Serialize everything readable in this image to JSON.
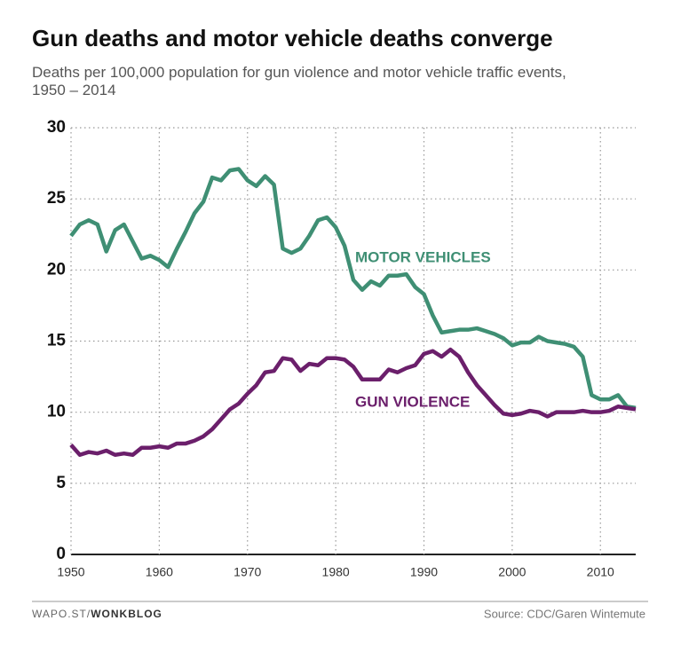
{
  "chart_data": {
    "type": "line",
    "title": "Gun deaths and motor vehicle deaths converge",
    "subtitle": "Deaths per 100,000 population for gun violence and motor vehicle traffic events, 1950 – 2014",
    "x": [
      1950,
      1951,
      1952,
      1953,
      1954,
      1955,
      1956,
      1957,
      1958,
      1959,
      1960,
      1961,
      1962,
      1963,
      1964,
      1965,
      1966,
      1967,
      1968,
      1969,
      1970,
      1971,
      1972,
      1973,
      1974,
      1975,
      1976,
      1977,
      1978,
      1979,
      1980,
      1981,
      1982,
      1983,
      1984,
      1985,
      1986,
      1987,
      1988,
      1989,
      1990,
      1991,
      1992,
      1993,
      1994,
      1995,
      1996,
      1997,
      1998,
      1999,
      2000,
      2001,
      2002,
      2003,
      2004,
      2005,
      2006,
      2007,
      2008,
      2009,
      2010,
      2011,
      2012,
      2013,
      2014
    ],
    "series": [
      {
        "name": "MOTOR VEHICLES",
        "color": "#3f8f74",
        "values": [
          22.4,
          23.2,
          23.5,
          23.2,
          21.3,
          22.8,
          23.2,
          22.0,
          20.8,
          21.0,
          20.7,
          20.2,
          21.5,
          22.7,
          24.0,
          24.8,
          26.5,
          26.3,
          27.0,
          27.1,
          26.3,
          25.9,
          26.6,
          26.0,
          21.5,
          21.2,
          21.5,
          22.4,
          23.5,
          23.7,
          23.0,
          21.7,
          19.3,
          18.6,
          19.2,
          18.9,
          19.6,
          19.6,
          19.7,
          18.8,
          18.3,
          16.8,
          15.6,
          15.7,
          15.8,
          15.8,
          15.9,
          15.7,
          15.5,
          15.2,
          14.7,
          14.9,
          14.9,
          15.3,
          15.0,
          14.9,
          14.8,
          14.6,
          13.9,
          11.2,
          10.9,
          10.9,
          11.2,
          10.4,
          10.3
        ]
      },
      {
        "name": "GUN VIOLENCE",
        "color": "#6b1f6b",
        "values": [
          7.7,
          7.0,
          7.2,
          7.1,
          7.3,
          7.0,
          7.1,
          7.0,
          7.5,
          7.5,
          7.6,
          7.5,
          7.8,
          7.8,
          8.0,
          8.3,
          8.8,
          9.5,
          10.2,
          10.6,
          11.3,
          11.9,
          12.8,
          12.9,
          13.8,
          13.7,
          12.9,
          13.4,
          13.3,
          13.8,
          13.8,
          13.7,
          13.2,
          12.3,
          12.3,
          12.3,
          13.0,
          12.8,
          13.1,
          13.3,
          14.1,
          14.3,
          13.9,
          14.4,
          13.9,
          12.8,
          11.9,
          11.2,
          10.5,
          9.9,
          9.8,
          9.9,
          10.1,
          10.0,
          9.7,
          10.0,
          10.0,
          10.0,
          10.1,
          10.0,
          10.0,
          10.1,
          10.4,
          10.3,
          10.2
        ]
      }
    ],
    "xlim": [
      1950,
      2014
    ],
    "xticks": [
      1950,
      1960,
      1970,
      1980,
      1990,
      2000,
      2010
    ],
    "ylim": [
      0,
      30
    ],
    "yticks": [
      0,
      5,
      10,
      15,
      20,
      25,
      30
    ],
    "grid": true,
    "credit": "WAPO.ST/",
    "blog": "WONKBLOG",
    "source": "Source: CDC/Garen Wintemute"
  }
}
